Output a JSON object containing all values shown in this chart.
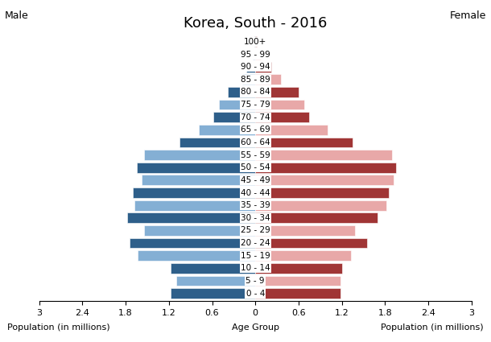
{
  "title": "Korea, South - 2016",
  "age_groups": [
    "100+",
    "95 - 99",
    "90 - 94",
    "85 - 89",
    "80 - 84",
    "75 - 79",
    "70 - 74",
    "65 - 69",
    "60 - 64",
    "55 - 59",
    "50 - 54",
    "45 - 49",
    "40 - 44",
    "35 - 39",
    "30 - 34",
    "25 - 29",
    "20 - 24",
    "15 - 19",
    "10 - 14",
    "5 - 9",
    "0 - 4"
  ],
  "male_values": [
    0.01,
    0.04,
    0.13,
    0.18,
    0.38,
    0.5,
    0.58,
    0.78,
    1.05,
    1.55,
    1.65,
    1.58,
    1.7,
    1.68,
    1.78,
    1.55,
    1.75,
    1.63,
    1.18,
    1.1,
    1.18
  ],
  "female_values": [
    0.02,
    0.08,
    0.22,
    0.35,
    0.6,
    0.68,
    0.75,
    1.0,
    1.35,
    1.9,
    1.95,
    1.92,
    1.85,
    1.82,
    1.7,
    1.38,
    1.55,
    1.33,
    1.2,
    1.18,
    1.18
  ],
  "male_colors_dark": "#2e5f8a",
  "male_colors_light": "#84afd4",
  "female_colors_dark": "#a03535",
  "female_colors_light": "#e8a8a8",
  "xlabel_left": "Population (in millions)",
  "xlabel_center": "Age Group",
  "xlabel_right": "Population (in millions)",
  "label_male": "Male",
  "label_female": "Female",
  "xlim": 3.0,
  "background_color": "#ffffff",
  "title_fontsize": 13,
  "label_fontsize": 8,
  "tick_fontsize": 8,
  "age_fontsize": 7.5
}
